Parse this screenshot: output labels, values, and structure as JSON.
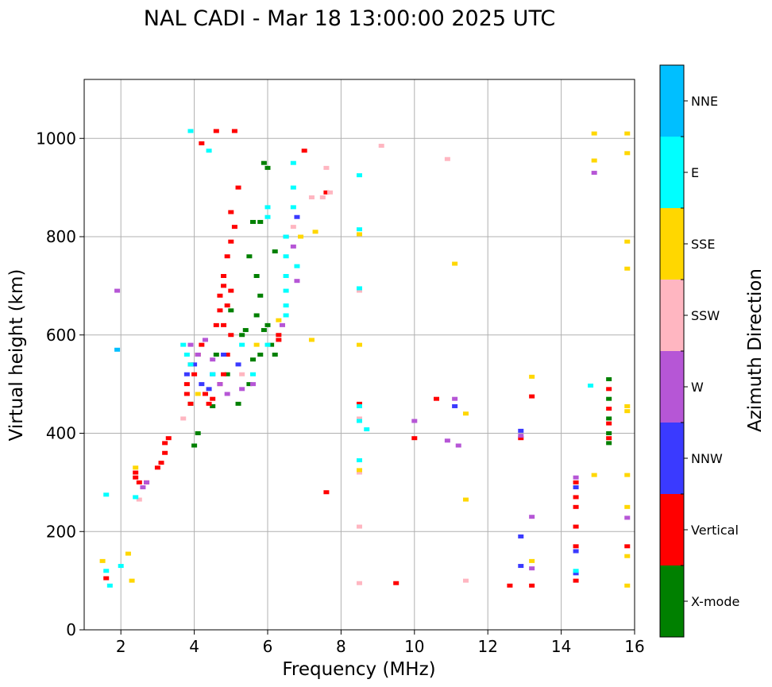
{
  "chart_data": {
    "type": "scatter",
    "title": "NAL CADI - Mar 18 13:00:00 2025 UTC",
    "xlabel": "Frequency (MHz)",
    "ylabel": "Virtual height (km)",
    "xlim": [
      1,
      16
    ],
    "ylim": [
      0,
      1120
    ],
    "xticks": [
      2,
      4,
      6,
      8,
      10,
      12,
      14,
      16
    ],
    "yticks": [
      0,
      200,
      400,
      600,
      800,
      1000
    ],
    "grid": true,
    "colorbar": {
      "title": "Azimuth Direction",
      "categories": [
        {
          "label": "X-mode",
          "color": "#008000"
        },
        {
          "label": "Vertical",
          "color": "#ff0000"
        },
        {
          "label": "NNW",
          "color": "#3a3aff"
        },
        {
          "label": "W",
          "color": "#b656d6"
        },
        {
          "label": "SSW",
          "color": "#ffb6c1"
        },
        {
          "label": "SSE",
          "color": "#ffd700"
        },
        {
          "label": "E",
          "color": "#00ffff"
        },
        {
          "label": "NNE",
          "color": "#00bfff"
        }
      ]
    },
    "series": [
      {
        "name": "X-mode",
        "points": [
          [
            4.1,
            400
          ],
          [
            4.0,
            375
          ],
          [
            3.9,
            460
          ],
          [
            4.5,
            455
          ],
          [
            5.2,
            460
          ],
          [
            5.5,
            500
          ],
          [
            5.6,
            550
          ],
          [
            5.8,
            560
          ],
          [
            5.9,
            610
          ],
          [
            6.0,
            620
          ],
          [
            6.1,
            580
          ],
          [
            6.2,
            560
          ],
          [
            5.7,
            720
          ],
          [
            5.8,
            680
          ],
          [
            5.4,
            610
          ],
          [
            5.0,
            650
          ],
          [
            5.9,
            950
          ],
          [
            6.0,
            940
          ],
          [
            5.8,
            830
          ],
          [
            5.6,
            830
          ],
          [
            6.2,
            770
          ],
          [
            4.9,
            520
          ],
          [
            4.6,
            560
          ],
          [
            5.3,
            600
          ],
          [
            5.7,
            640
          ],
          [
            5.5,
            760
          ],
          [
            15.3,
            510
          ],
          [
            15.3,
            470
          ],
          [
            15.3,
            430
          ],
          [
            15.3,
            400
          ],
          [
            15.3,
            380
          ]
        ]
      },
      {
        "name": "Vertical",
        "points": [
          [
            1.6,
            105
          ],
          [
            2.4,
            320
          ],
          [
            2.4,
            310
          ],
          [
            2.5,
            300
          ],
          [
            2.7,
            300
          ],
          [
            3.0,
            330
          ],
          [
            3.1,
            340
          ],
          [
            3.2,
            360
          ],
          [
            3.2,
            380
          ],
          [
            3.3,
            390
          ],
          [
            3.8,
            480
          ],
          [
            3.8,
            500
          ],
          [
            3.9,
            460
          ],
          [
            4.0,
            520
          ],
          [
            3.9,
            540
          ],
          [
            4.1,
            560
          ],
          [
            4.2,
            580
          ],
          [
            4.3,
            480
          ],
          [
            4.4,
            460
          ],
          [
            4.5,
            470
          ],
          [
            4.7,
            500
          ],
          [
            4.8,
            520
          ],
          [
            4.9,
            560
          ],
          [
            5.0,
            600
          ],
          [
            4.8,
            620
          ],
          [
            4.9,
            660
          ],
          [
            5.0,
            690
          ],
          [
            4.8,
            720
          ],
          [
            4.9,
            760
          ],
          [
            5.0,
            790
          ],
          [
            5.1,
            820
          ],
          [
            5.0,
            850
          ],
          [
            5.2,
            900
          ],
          [
            4.6,
            620
          ],
          [
            4.7,
            650
          ],
          [
            4.7,
            680
          ],
          [
            4.8,
            700
          ],
          [
            4.2,
            990
          ],
          [
            4.6,
            1015
          ],
          [
            5.1,
            1015
          ],
          [
            6.3,
            590
          ],
          [
            6.3,
            600
          ],
          [
            7.6,
            890
          ],
          [
            7.0,
            975
          ],
          [
            7.6,
            280
          ],
          [
            8.5,
            460
          ],
          [
            9.5,
            95
          ],
          [
            10.0,
            390
          ],
          [
            10.6,
            470
          ],
          [
            12.6,
            90
          ],
          [
            12.9,
            390
          ],
          [
            13.2,
            475
          ],
          [
            13.2,
            90
          ],
          [
            14.4,
            300
          ],
          [
            14.4,
            270
          ],
          [
            14.4,
            250
          ],
          [
            14.4,
            210
          ],
          [
            14.4,
            170
          ],
          [
            14.4,
            100
          ],
          [
            15.3,
            490
          ],
          [
            15.3,
            450
          ],
          [
            15.3,
            420
          ],
          [
            15.3,
            390
          ],
          [
            15.8,
            170
          ]
        ]
      },
      {
        "name": "NNW",
        "points": [
          [
            3.8,
            520
          ],
          [
            4.2,
            500
          ],
          [
            4.5,
            520
          ],
          [
            4.8,
            560
          ],
          [
            5.2,
            540
          ],
          [
            4.0,
            540
          ],
          [
            4.4,
            490
          ],
          [
            6.5,
            800
          ],
          [
            6.8,
            840
          ],
          [
            11.1,
            455
          ],
          [
            12.9,
            405
          ],
          [
            12.9,
            190
          ],
          [
            12.9,
            130
          ],
          [
            14.4,
            160
          ],
          [
            14.4,
            115
          ],
          [
            14.4,
            290
          ]
        ]
      },
      {
        "name": "W",
        "points": [
          [
            3.9,
            580
          ],
          [
            4.1,
            560
          ],
          [
            4.3,
            590
          ],
          [
            4.5,
            550
          ],
          [
            4.7,
            500
          ],
          [
            4.9,
            480
          ],
          [
            5.3,
            490
          ],
          [
            5.6,
            500
          ],
          [
            6.4,
            620
          ],
          [
            6.7,
            780
          ],
          [
            6.8,
            710
          ],
          [
            2.7,
            300
          ],
          [
            2.6,
            290
          ],
          [
            1.9,
            690
          ],
          [
            10.0,
            425
          ],
          [
            10.9,
            385
          ],
          [
            11.1,
            470
          ],
          [
            11.2,
            375
          ],
          [
            12.9,
            395
          ],
          [
            13.2,
            230
          ],
          [
            13.2,
            125
          ],
          [
            14.4,
            310
          ],
          [
            14.9,
            930
          ],
          [
            15.8,
            228
          ]
        ]
      },
      {
        "name": "SSW",
        "points": [
          [
            2.5,
            265
          ],
          [
            3.7,
            430
          ],
          [
            5.3,
            520
          ],
          [
            6.7,
            820
          ],
          [
            7.5,
            880
          ],
          [
            7.7,
            890
          ],
          [
            7.2,
            880
          ],
          [
            8.5,
            430
          ],
          [
            8.5,
            320
          ],
          [
            8.5,
            210
          ],
          [
            8.5,
            95
          ],
          [
            8.5,
            690
          ],
          [
            9.1,
            985
          ],
          [
            10.9,
            958
          ],
          [
            11.4,
            100
          ],
          [
            7.6,
            940
          ]
        ]
      },
      {
        "name": "SSE",
        "points": [
          [
            1.5,
            140
          ],
          [
            2.2,
            155
          ],
          [
            2.3,
            100
          ],
          [
            2.4,
            330
          ],
          [
            4.1,
            480
          ],
          [
            5.7,
            580
          ],
          [
            6.3,
            630
          ],
          [
            6.9,
            800
          ],
          [
            7.3,
            810
          ],
          [
            7.2,
            590
          ],
          [
            8.5,
            580
          ],
          [
            8.5,
            805
          ],
          [
            8.5,
            325
          ],
          [
            11.1,
            745
          ],
          [
            11.4,
            440
          ],
          [
            11.4,
            265
          ],
          [
            13.2,
            515
          ],
          [
            13.2,
            140
          ],
          [
            14.9,
            1010
          ],
          [
            14.9,
            955
          ],
          [
            14.9,
            315
          ],
          [
            15.8,
            1010
          ],
          [
            15.8,
            970
          ],
          [
            15.8,
            790
          ],
          [
            15.8,
            735
          ],
          [
            15.8,
            455
          ],
          [
            15.8,
            445
          ],
          [
            15.8,
            315
          ],
          [
            15.8,
            250
          ],
          [
            15.8,
            150
          ],
          [
            15.8,
            90
          ]
        ]
      },
      {
        "name": "E",
        "points": [
          [
            1.6,
            275
          ],
          [
            1.6,
            120
          ],
          [
            1.7,
            90
          ],
          [
            2.0,
            130
          ],
          [
            2.4,
            270
          ],
          [
            3.7,
            580
          ],
          [
            3.8,
            560
          ],
          [
            3.9,
            540
          ],
          [
            4.5,
            520
          ],
          [
            5.3,
            580
          ],
          [
            5.6,
            520
          ],
          [
            6.0,
            580
          ],
          [
            6.0,
            860
          ],
          [
            6.0,
            840
          ],
          [
            6.5,
            800
          ],
          [
            6.5,
            760
          ],
          [
            6.5,
            720
          ],
          [
            6.5,
            690
          ],
          [
            6.5,
            660
          ],
          [
            6.5,
            640
          ],
          [
            6.7,
            950
          ],
          [
            6.7,
            900
          ],
          [
            6.7,
            860
          ],
          [
            6.8,
            740
          ],
          [
            8.5,
            925
          ],
          [
            8.5,
            815
          ],
          [
            8.5,
            695
          ],
          [
            8.5,
            455
          ],
          [
            8.5,
            425
          ],
          [
            8.5,
            345
          ],
          [
            8.7,
            408
          ],
          [
            14.4,
            120
          ],
          [
            14.8,
            497
          ],
          [
            4.4,
            975
          ],
          [
            3.9,
            1015
          ]
        ]
      },
      {
        "name": "NNE",
        "points": [
          [
            1.9,
            570
          ]
        ]
      }
    ]
  }
}
